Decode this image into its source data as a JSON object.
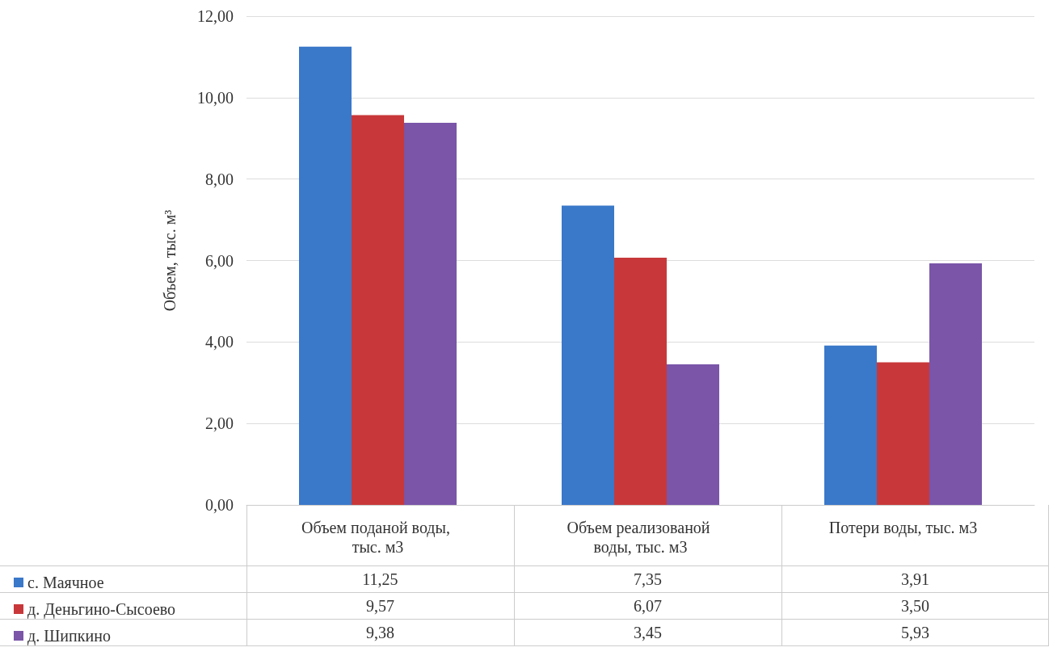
{
  "chart_data": {
    "type": "bar",
    "ylabel": "Объем, тыс. м³",
    "categories": [
      "Объем поданой воды, тыс. м3",
      "Объем реализованой воды, тыс. м3",
      "Потери воды, тыс. м3"
    ],
    "series": [
      {
        "name": "с. Маячное",
        "color": "#3a78c9",
        "values": [
          11.25,
          7.35,
          3.91
        ],
        "value_labels": [
          "11,25",
          "7,35",
          "3,91"
        ]
      },
      {
        "name": "д. Деньгино-Сысоево",
        "color": "#c8383a",
        "values": [
          9.57,
          6.07,
          3.5
        ],
        "value_labels": [
          "9,57",
          "6,07",
          "3,50"
        ]
      },
      {
        "name": "д. Шипкино",
        "color": "#7a55a8",
        "values": [
          9.38,
          3.45,
          5.93
        ],
        "value_labels": [
          "9,38",
          "3,45",
          "5,93"
        ]
      }
    ],
    "ylim": [
      0,
      12
    ],
    "yticks": [
      {
        "value": 0,
        "label": "0,00"
      },
      {
        "value": 2,
        "label": "2,00"
      },
      {
        "value": 4,
        "label": "4,00"
      },
      {
        "value": 6,
        "label": "6,00"
      },
      {
        "value": 8,
        "label": "8,00"
      },
      {
        "value": 10,
        "label": "10,00"
      },
      {
        "value": 12,
        "label": "12,00"
      }
    ],
    "grid": "y",
    "legend": "bottom left"
  }
}
